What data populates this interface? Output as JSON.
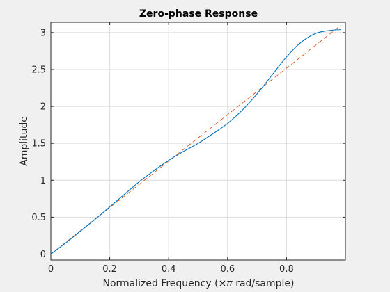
{
  "chart_data": {
    "type": "line",
    "title": "Zero-phase Response",
    "xlabel_prefix": "Normalized Frequency  (",
    "xlabel_symbol": "×π",
    "xlabel_suffix": " rad/sample)",
    "ylabel": "Amplitude",
    "xlim": [
      0,
      1
    ],
    "ylim": [
      -0.08,
      3.14
    ],
    "xticks": [
      0,
      0.2,
      0.4,
      0.6,
      0.8
    ],
    "xtick_labels": [
      "0",
      "0.2",
      "0.4",
      "0.6",
      "0.8"
    ],
    "yticks": [
      0,
      0.5,
      1,
      1.5,
      2,
      2.5,
      3
    ],
    "ytick_labels": [
      "0",
      "0.5",
      "1",
      "1.5",
      "2",
      "2.5",
      "3"
    ],
    "grid": true,
    "series": [
      {
        "style": "solid",
        "color": "#0072bd",
        "x": [
          0,
          0.05,
          0.1,
          0.15,
          0.2,
          0.25,
          0.3,
          0.35,
          0.4,
          0.45,
          0.5,
          0.55,
          0.6,
          0.65,
          0.7,
          0.75,
          0.8,
          0.85,
          0.9,
          0.95,
          0.985
        ],
        "y": [
          0,
          0.15,
          0.31,
          0.47,
          0.64,
          0.81,
          0.98,
          1.13,
          1.27,
          1.39,
          1.5,
          1.63,
          1.77,
          1.95,
          2.17,
          2.42,
          2.67,
          2.87,
          2.99,
          3.03,
          3.04
        ]
      },
      {
        "style": "dashed",
        "color": "#d95319",
        "x": [
          0,
          0.985
        ],
        "y": [
          0,
          3.1
        ]
      }
    ]
  }
}
